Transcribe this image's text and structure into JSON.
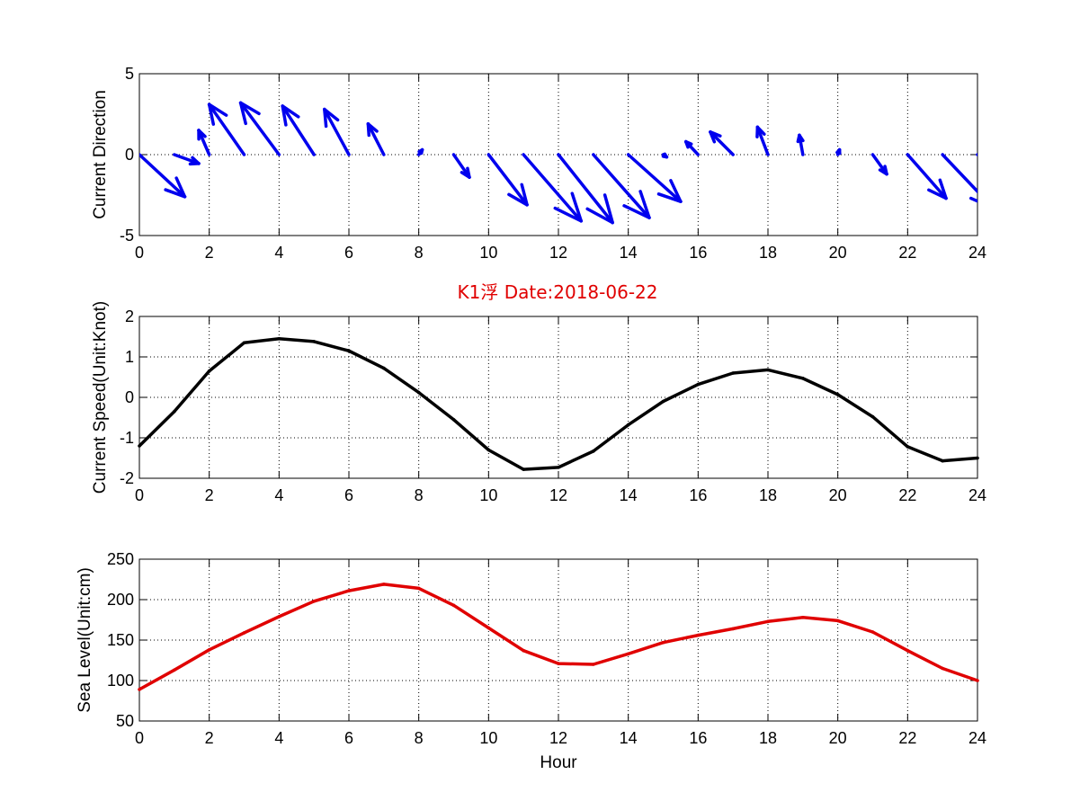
{
  "figure_title": "K1浮   Date:2018-06-22",
  "title_color": "#e00000",
  "chart_data": [
    {
      "type": "quiver",
      "ylabel": "Current Direction",
      "xlabel": "",
      "xlim": [
        0,
        24
      ],
      "ylim": [
        -5,
        5
      ],
      "xticks": [
        "0",
        "2",
        "4",
        "6",
        "8",
        "10",
        "12",
        "14",
        "16",
        "18",
        "20",
        "22",
        "24"
      ],
      "yticks": [
        "-5",
        "0",
        "5"
      ],
      "grid": true,
      "color": "#0000ee",
      "hours": [
        0,
        1,
        2,
        3,
        4,
        5,
        6,
        7,
        8,
        9,
        10,
        11,
        12,
        13,
        14,
        15,
        16,
        17,
        18,
        19,
        20,
        21,
        22,
        23,
        24
      ],
      "u": [
        1.3,
        0.7,
        -0.3,
        -1.0,
        -1.1,
        -0.9,
        -0.7,
        -0.45,
        0.1,
        0.45,
        1.1,
        1.65,
        1.55,
        1.6,
        1.5,
        0.1,
        -0.35,
        -0.65,
        -0.3,
        -0.1,
        0.05,
        0.4,
        1.1,
        1.45,
        1.55
      ],
      "v": [
        -2.6,
        -0.55,
        1.5,
        3.1,
        3.2,
        3.0,
        2.8,
        1.9,
        0.3,
        -1.4,
        -3.1,
        -4.1,
        -4.2,
        -3.9,
        -2.9,
        -0.15,
        0.8,
        1.4,
        1.7,
        1.2,
        0.3,
        -1.2,
        -2.7,
        -3.3,
        -3.0
      ]
    },
    {
      "type": "line",
      "ylabel": "Current Speed(Unit:Knot)",
      "xlabel": "",
      "xlim": [
        0,
        24
      ],
      "ylim": [
        -2,
        2
      ],
      "xticks": [
        "0",
        "2",
        "4",
        "6",
        "8",
        "10",
        "12",
        "14",
        "16",
        "18",
        "20",
        "22",
        "24"
      ],
      "yticks": [
        "-2",
        "-1",
        "0",
        "1",
        "2"
      ],
      "grid": true,
      "color": "#000000",
      "x": [
        0,
        1,
        2,
        3,
        4,
        5,
        6,
        7,
        8,
        9,
        10,
        11,
        12,
        13,
        14,
        15,
        16,
        17,
        18,
        19,
        20,
        21,
        22,
        23,
        24
      ],
      "y": [
        -1.2,
        -0.35,
        0.65,
        1.35,
        1.45,
        1.38,
        1.15,
        0.72,
        0.12,
        -0.55,
        -1.3,
        -1.78,
        -1.73,
        -1.33,
        -0.68,
        -0.1,
        0.32,
        0.6,
        0.68,
        0.47,
        0.07,
        -0.48,
        -1.22,
        -1.57,
        -1.5
      ]
    },
    {
      "type": "line",
      "ylabel": "Sea Level(Unit:cm)",
      "xlabel": "Hour",
      "xlim": [
        0,
        24
      ],
      "ylim": [
        50,
        250
      ],
      "xticks": [
        "0",
        "2",
        "4",
        "6",
        "8",
        "10",
        "12",
        "14",
        "16",
        "18",
        "20",
        "22",
        "24"
      ],
      "yticks": [
        "50",
        "100",
        "150",
        "200",
        "250"
      ],
      "grid": true,
      "color": "#e00000",
      "x": [
        0,
        1,
        2,
        3,
        4,
        5,
        6,
        7,
        8,
        9,
        10,
        11,
        12,
        13,
        14,
        15,
        16,
        17,
        18,
        19,
        20,
        21,
        22,
        23,
        24
      ],
      "y": [
        89,
        113,
        138,
        159,
        179,
        198,
        211,
        219,
        214,
        193,
        165,
        137,
        121,
        120,
        133,
        147,
        156,
        164,
        173,
        178,
        174,
        160,
        137,
        115,
        100
      ]
    }
  ]
}
